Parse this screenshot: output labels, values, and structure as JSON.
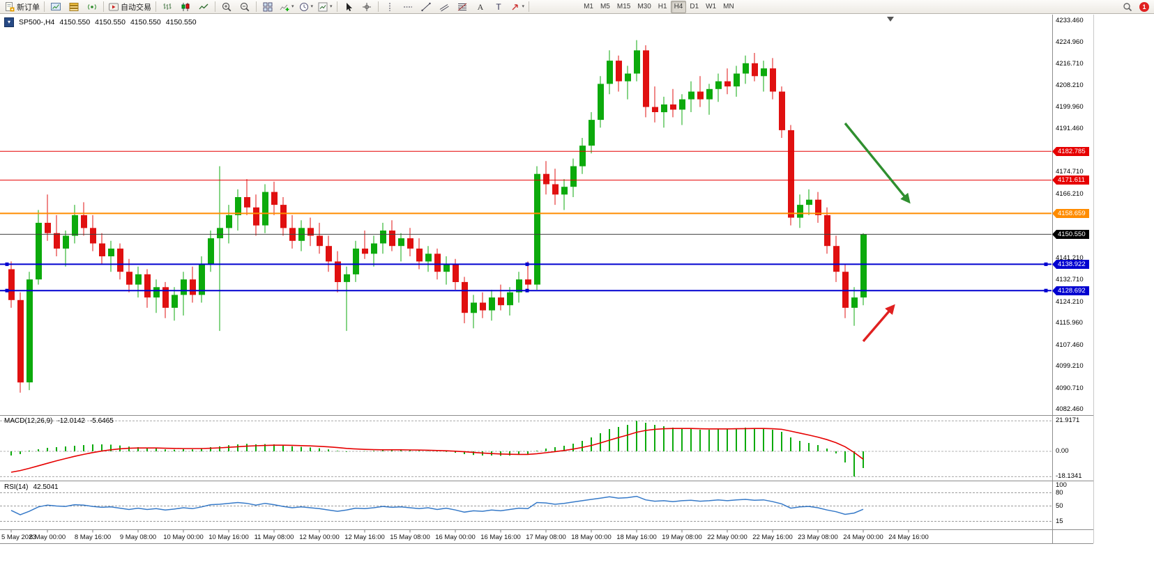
{
  "toolbar": {
    "groups": [
      {
        "items": [
          {
            "name": "new-order-button",
            "icon": "new-order",
            "label": "新订单"
          }
        ]
      },
      {
        "items": [
          {
            "name": "market-watch-button",
            "icon": "market-watch"
          },
          {
            "name": "data-window-button",
            "icon": "data-window"
          },
          {
            "name": "navigator-button",
            "icon": "navigator"
          }
        ]
      },
      {
        "items": [
          {
            "name": "autotrading-button",
            "icon": "autotrading",
            "label": "自动交易"
          }
        ]
      },
      {
        "items": [
          {
            "name": "bar-chart-button",
            "icon": "bars"
          },
          {
            "name": "candlestick-chart-button",
            "icon": "candles"
          },
          {
            "name": "line-chart-button",
            "icon": "line-chart"
          }
        ]
      },
      {
        "items": [
          {
            "name": "zoom-in-button",
            "icon": "zoom-in"
          },
          {
            "name": "zoom-out-button",
            "icon": "zoom-out"
          }
        ]
      },
      {
        "items": [
          {
            "name": "tile-windows-button",
            "icon": "tile"
          },
          {
            "name": "new-chart-button",
            "icon": "new-chart",
            "dropdown": true
          },
          {
            "name": "periods-button",
            "icon": "clock",
            "dropdown": true
          },
          {
            "name": "templates-button",
            "icon": "template",
            "dropdown": true
          }
        ]
      },
      {
        "items": [
          {
            "name": "cursor-button",
            "icon": "cursor"
          },
          {
            "name": "crosshair-button",
            "icon": "crosshair"
          }
        ]
      },
      {
        "items": [
          {
            "name": "vertical-line-button",
            "icon": "vline"
          },
          {
            "name": "horizontal-line-button",
            "icon": "hline"
          },
          {
            "name": "trendline-button",
            "icon": "trendline"
          },
          {
            "name": "channel-button",
            "icon": "channel"
          },
          {
            "name": "fibonacci-button",
            "icon": "fibonacci"
          },
          {
            "name": "text-button",
            "icon": "text"
          },
          {
            "name": "label-button",
            "icon": "label-t"
          },
          {
            "name": "arrows-button",
            "icon": "arrows",
            "dropdown": true
          }
        ]
      }
    ],
    "timeframes": [
      "M1",
      "M5",
      "M15",
      "M30",
      "H1",
      "H4",
      "D1",
      "W1",
      "MN"
    ],
    "active_timeframe": "H4",
    "notification_count": "1"
  },
  "header": {
    "symbol_tf": "SP500-,H4",
    "o": "4150.550",
    "h": "4150.550",
    "l": "4150.550",
    "c": "4150.550"
  },
  "chart_data": {
    "type": "candlestick",
    "symbol": "SP500-",
    "timeframe": "H4",
    "price_axis": {
      "max": 4233.46,
      "min": 4082.46,
      "tick_labels": [
        "4233.460",
        "4224.960",
        "4216.710",
        "4208.210",
        "4199.960",
        "4191.460",
        "4182.960",
        "4174.710",
        "4166.210",
        "4157.960",
        "4149.460",
        "4141.210",
        "4132.710",
        "4124.210",
        "4115.960",
        "4107.460",
        "4099.210",
        "4090.710",
        "4082.460"
      ]
    },
    "hlines": [
      {
        "name": "resistance-line-1",
        "price": 4182.785,
        "label": "4182.785",
        "color": "#e60000",
        "width": 1
      },
      {
        "name": "resistance-line-2",
        "price": 4171.611,
        "label": "4171.611",
        "color": "#e60000",
        "width": 1
      },
      {
        "name": "breakout-line",
        "price": 4158.659,
        "label": "4158.659",
        "color": "#ff8c00",
        "width": 2
      },
      {
        "name": "current-price-line",
        "price": 4150.55,
        "label": "4150.550",
        "color": "#404040",
        "width": 1,
        "badge": "#000000"
      },
      {
        "name": "support-line-1",
        "price": 4138.922,
        "label": "4138.922",
        "color": "#0000d0",
        "width": 2,
        "handles": true
      },
      {
        "name": "support-line-2",
        "price": 4128.692,
        "label": "4128.692",
        "color": "#0000d0",
        "width": 2,
        "handles": true
      }
    ],
    "candles": [
      [
        4137,
        4140,
        4122,
        4125
      ],
      [
        4125,
        4128,
        4089,
        4093
      ],
      [
        4093,
        4136,
        4090,
        4133
      ],
      [
        4133,
        4160,
        4131,
        4155
      ],
      [
        4155,
        4166,
        4148,
        4151
      ],
      [
        4151,
        4158,
        4142,
        4145
      ],
      [
        4145,
        4152,
        4138,
        4150
      ],
      [
        4150,
        4162,
        4147,
        4158
      ],
      [
        4158,
        4163,
        4150,
        4153
      ],
      [
        4153,
        4158,
        4144,
        4147
      ],
      [
        4147,
        4151,
        4139,
        4142
      ],
      [
        4142,
        4148,
        4136,
        4145
      ],
      [
        4145,
        4147,
        4133,
        4136
      ],
      [
        4136,
        4141,
        4128,
        4131
      ],
      [
        4131,
        4138,
        4126,
        4135
      ],
      [
        4135,
        4137,
        4122,
        4126
      ],
      [
        4126,
        4133,
        4120,
        4130
      ],
      [
        4130,
        4132,
        4118,
        4122
      ],
      [
        4122,
        4130,
        4117,
        4127
      ],
      [
        4127,
        4136,
        4119,
        4133
      ],
      [
        4133,
        4138,
        4124,
        4127
      ],
      [
        4127,
        4142,
        4124,
        4139
      ],
      [
        4139,
        4152,
        4136,
        4149
      ],
      [
        4149,
        4177,
        4113,
        4153
      ],
      [
        4153,
        4162,
        4147,
        4158
      ],
      [
        4158,
        4168,
        4152,
        4165
      ],
      [
        4165,
        4172,
        4158,
        4161
      ],
      [
        4161,
        4166,
        4150,
        4154
      ],
      [
        4154,
        4170,
        4151,
        4167
      ],
      [
        4167,
        4171,
        4158,
        4162
      ],
      [
        4162,
        4165,
        4150,
        4153
      ],
      [
        4153,
        4158,
        4145,
        4148
      ],
      [
        4148,
        4156,
        4144,
        4153
      ],
      [
        4153,
        4157,
        4146,
        4150
      ],
      [
        4150,
        4155,
        4143,
        4146
      ],
      [
        4146,
        4150,
        4136,
        4140
      ],
      [
        4140,
        4144,
        4128,
        4132
      ],
      [
        4132,
        4138,
        4113,
        4135
      ],
      [
        4135,
        4148,
        4132,
        4145
      ],
      [
        4145,
        4152,
        4141,
        4143
      ],
      [
        4143,
        4150,
        4138,
        4147
      ],
      [
        4147,
        4155,
        4143,
        4152
      ],
      [
        4152,
        4156,
        4144,
        4146
      ],
      [
        4146,
        4151,
        4140,
        4149
      ],
      [
        4149,
        4153,
        4142,
        4145
      ],
      [
        4145,
        4149,
        4137,
        4140
      ],
      [
        4140,
        4146,
        4136,
        4143
      ],
      [
        4143,
        4145,
        4133,
        4136
      ],
      [
        4136,
        4142,
        4131,
        4139
      ],
      [
        4139,
        4141,
        4129,
        4132
      ],
      [
        4132,
        4134,
        4116,
        4120
      ],
      [
        4120,
        4127,
        4114,
        4124
      ],
      [
        4124,
        4128,
        4118,
        4121
      ],
      [
        4121,
        4129,
        4117,
        4126
      ],
      [
        4126,
        4131,
        4121,
        4123
      ],
      [
        4123,
        4130,
        4119,
        4128
      ],
      [
        4128,
        4136,
        4124,
        4133
      ],
      [
        4133,
        4140,
        4129,
        4131
      ],
      [
        4131,
        4177,
        4129,
        4174
      ],
      [
        4174,
        4179,
        4166,
        4170
      ],
      [
        4170,
        4176,
        4162,
        4166
      ],
      [
        4166,
        4172,
        4160,
        4169
      ],
      [
        4169,
        4180,
        4165,
        4177
      ],
      [
        4177,
        4188,
        4174,
        4185
      ],
      [
        4185,
        4198,
        4182,
        4195
      ],
      [
        4195,
        4212,
        4192,
        4209
      ],
      [
        4209,
        4222,
        4205,
        4218
      ],
      [
        4218,
        4220,
        4206,
        4210
      ],
      [
        4210,
        4216,
        4203,
        4213
      ],
      [
        4213,
        4226,
        4210,
        4222
      ],
      [
        4222,
        4224,
        4196,
        4200
      ],
      [
        4200,
        4208,
        4194,
        4198
      ],
      [
        4198,
        4204,
        4192,
        4201
      ],
      [
        4201,
        4207,
        4196,
        4199
      ],
      [
        4199,
        4205,
        4193,
        4203
      ],
      [
        4203,
        4210,
        4198,
        4206
      ],
      [
        4206,
        4212,
        4200,
        4203
      ],
      [
        4203,
        4209,
        4197,
        4207
      ],
      [
        4207,
        4213,
        4202,
        4210
      ],
      [
        4210,
        4215,
        4205,
        4208
      ],
      [
        4208,
        4216,
        4204,
        4213
      ],
      [
        4213,
        4220,
        4209,
        4217
      ],
      [
        4217,
        4221,
        4210,
        4212
      ],
      [
        4212,
        4218,
        4206,
        4215
      ],
      [
        4215,
        4219,
        4203,
        4206
      ],
      [
        4206,
        4208,
        4188,
        4191
      ],
      [
        4191,
        4193,
        4154,
        4157
      ],
      [
        4157,
        4166,
        4153,
        4162
      ],
      [
        4162,
        4168,
        4158,
        4164
      ],
      [
        4164,
        4167,
        4155,
        4158
      ],
      [
        4158,
        4161,
        4143,
        4146
      ],
      [
        4146,
        4150,
        4132,
        4136
      ],
      [
        4136,
        4139,
        4118,
        4122
      ],
      [
        4122,
        4130,
        4115,
        4126
      ],
      [
        4126,
        4151,
        4123,
        4150.55
      ]
    ],
    "time_labels": [
      {
        "text": "5 May 2023",
        "bar": 0
      },
      {
        "text": "8 May 00:00",
        "bar": 4
      },
      {
        "text": "8 May 16:00",
        "bar": 9
      },
      {
        "text": "9 May 08:00",
        "bar": 14
      },
      {
        "text": "10 May 00:00",
        "bar": 19
      },
      {
        "text": "10 May 16:00",
        "bar": 24
      },
      {
        "text": "11 May 08:00",
        "bar": 29
      },
      {
        "text": "12 May 00:00",
        "bar": 34
      },
      {
        "text": "12 May 16:00",
        "bar": 39
      },
      {
        "text": "15 May 08:00",
        "bar": 44
      },
      {
        "text": "16 May 00:00",
        "bar": 49
      },
      {
        "text": "16 May 16:00",
        "bar": 54
      },
      {
        "text": "17 May 08:00",
        "bar": 59
      },
      {
        "text": "18 May 00:00",
        "bar": 64
      },
      {
        "text": "18 May 16:00",
        "bar": 69
      },
      {
        "text": "19 May 08:00",
        "bar": 74
      },
      {
        "text": "22 May 00:00",
        "bar": 79
      },
      {
        "text": "22 May 16:00",
        "bar": 84
      },
      {
        "text": "23 May 08:00",
        "bar": 89
      },
      {
        "text": "24 May 00:00",
        "bar": 94
      },
      {
        "text": "24 May 16:00",
        "bar": 99
      }
    ],
    "shift_marker_bar": 97,
    "macd": {
      "label": "MACD(12,26,9)",
      "value": "-12.0142",
      "signal_value": "-5.6465",
      "scale_labels": [
        "21.9171",
        "0.00",
        "-18.1341"
      ],
      "scale_values": [
        21.9171,
        0,
        -18.1341
      ],
      "histogram_color": "#0caa0c",
      "signal_color": "#e60000",
      "histogram": [
        -3,
        -2,
        0.5,
        1.5,
        2.5,
        3,
        3.5,
        4,
        4.5,
        5,
        5,
        4.8,
        4.2,
        3.4,
        3,
        2.4,
        2,
        1.4,
        1.2,
        1.6,
        1.4,
        2,
        3,
        3.6,
        4.4,
        5,
        5.4,
        5,
        5.2,
        5,
        4.4,
        3.6,
        3.2,
        2.8,
        2.2,
        1.4,
        0.4,
        -0.4,
        0,
        0.2,
        0.4,
        0.8,
        1,
        1,
        0.8,
        0.4,
        0.2,
        -0.2,
        -0.4,
        -1,
        -2,
        -2.6,
        -3,
        -3,
        -3.2,
        -3,
        -2.4,
        -2,
        0.5,
        2,
        3,
        4,
        5.5,
        7.5,
        10,
        13,
        16,
        17.5,
        19,
        21.9,
        20.5,
        19,
        18,
        17,
        16.5,
        16,
        15.5,
        15.5,
        16,
        16,
        16.5,
        17,
        16.5,
        16.5,
        15.5,
        14,
        10,
        7.5,
        6,
        4.5,
        2,
        -1.5,
        -8,
        -18.1,
        -12
      ],
      "signal": [
        -15,
        -13.8,
        -12.2,
        -10.4,
        -8.6,
        -6.8,
        -5.2,
        -3.6,
        -2.2,
        -0.9,
        0.2,
        1.1,
        1.8,
        2.2,
        2.4,
        2.4,
        2.4,
        2.2,
        2.1,
        2,
        2,
        2,
        2.2,
        2.5,
        2.9,
        3.3,
        3.7,
        4,
        4.2,
        4.4,
        4.4,
        4.3,
        4.1,
        3.9,
        3.6,
        3.2,
        2.7,
        2.1,
        1.7,
        1.4,
        1.2,
        1.1,
        1.1,
        1.1,
        1,
        0.9,
        0.8,
        0.6,
        0.4,
        0.1,
        -0.3,
        -0.8,
        -1.2,
        -1.6,
        -1.9,
        -2.1,
        -2.2,
        -2.2,
        -1.7,
        -1,
        -0.2,
        0.6,
        1.6,
        2.8,
        4.2,
        6,
        8,
        9.9,
        11.7,
        13.7,
        15,
        15.8,
        16.2,
        16.4,
        16.4,
        16.4,
        16.2,
        16.1,
        16.1,
        16.1,
        16.2,
        16.3,
        16.4,
        16.4,
        16.2,
        15.8,
        14.5,
        13.1,
        11.7,
        10.2,
        8.4,
        6.2,
        3.3,
        -0.8,
        -5.65
      ]
    },
    "rsi": {
      "label": "RSI(14)",
      "value": "42.5041",
      "color": "#3579c8",
      "levels": [
        {
          "label": "100",
          "value": 100,
          "line": false
        },
        {
          "label": "80",
          "value": 80,
          "line": true
        },
        {
          "label": "50",
          "value": 50,
          "line": true
        },
        {
          "label": "15",
          "value": 15,
          "line": true
        }
      ],
      "values": [
        40,
        30,
        38,
        48,
        52,
        50,
        49,
        53,
        52,
        49,
        47,
        48,
        45,
        42,
        45,
        42,
        44,
        41,
        43,
        46,
        44,
        48,
        53,
        54,
        56,
        58,
        56,
        52,
        56,
        53,
        49,
        46,
        48,
        46,
        44,
        41,
        38,
        41,
        45,
        44,
        46,
        49,
        47,
        48,
        46,
        44,
        46,
        42,
        45,
        41,
        36,
        39,
        38,
        41,
        39,
        42,
        45,
        44,
        58,
        57,
        54,
        56,
        59,
        62,
        65,
        68,
        71,
        68,
        69,
        72,
        64,
        61,
        62,
        60,
        62,
        63,
        61,
        62,
        64,
        62,
        64,
        65,
        63,
        64,
        60,
        55,
        45,
        48,
        49,
        46,
        41,
        37,
        31,
        34,
        42.5
      ]
    },
    "arrows": [
      {
        "name": "downtrend-arrow",
        "color": "#2f8f2f",
        "from": [
          1212,
          177
        ],
        "to": [
          1303,
          289
        ]
      },
      {
        "name": "uptrend-arrow",
        "color": "#e02020",
        "from": [
          1238,
          490
        ],
        "to": [
          1281,
          440
        ]
      }
    ],
    "colors": {
      "bull": "#0caa0c",
      "bear": "#e01010",
      "separator": "#8c8c8c",
      "frame": "#c8c8c8"
    }
  }
}
